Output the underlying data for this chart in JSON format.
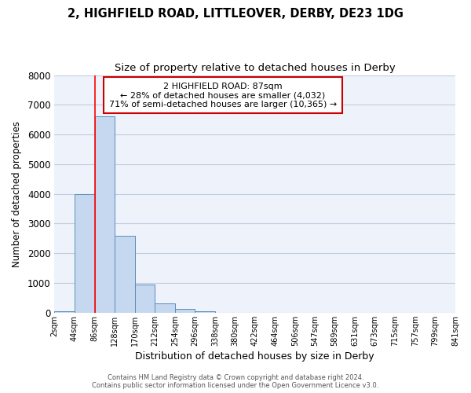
{
  "title": "2, HIGHFIELD ROAD, LITTLEOVER, DERBY, DE23 1DG",
  "subtitle": "Size of property relative to detached houses in Derby",
  "xlabel": "Distribution of detached houses by size in Derby",
  "ylabel": "Number of detached properties",
  "bin_edges": [
    2,
    44,
    86,
    128,
    170,
    212,
    254,
    296,
    338,
    380,
    422,
    464,
    506,
    547,
    589,
    631,
    673,
    715,
    757,
    799,
    841
  ],
  "bin_labels": [
    "2sqm",
    "44sqm",
    "86sqm",
    "128sqm",
    "170sqm",
    "212sqm",
    "254sqm",
    "296sqm",
    "338sqm",
    "380sqm",
    "422sqm",
    "464sqm",
    "506sqm",
    "547sqm",
    "589sqm",
    "631sqm",
    "673sqm",
    "715sqm",
    "757sqm",
    "799sqm",
    "841sqm"
  ],
  "bar_heights": [
    50,
    4000,
    6600,
    2600,
    950,
    320,
    130,
    50,
    0,
    0,
    0,
    0,
    0,
    0,
    0,
    0,
    0,
    0,
    0,
    0
  ],
  "bar_color": "#c5d8f0",
  "bar_edge_color": "#5b8db8",
  "background_color": "#ffffff",
  "plot_bg_color": "#eef2fa",
  "grid_color": "#c0cce0",
  "red_line_x": 87,
  "annotation_title": "2 HIGHFIELD ROAD: 87sqm",
  "annotation_line1": "← 28% of detached houses are smaller (4,032)",
  "annotation_line2": "71% of semi-detached houses are larger (10,365) →",
  "annotation_box_facecolor": "#ffffff",
  "annotation_box_edgecolor": "#cc0000",
  "ylim": [
    0,
    8000
  ],
  "yticks": [
    0,
    1000,
    2000,
    3000,
    4000,
    5000,
    6000,
    7000,
    8000
  ],
  "footer_line1": "Contains HM Land Registry data © Crown copyright and database right 2024.",
  "footer_line2": "Contains public sector information licensed under the Open Government Licence v3.0.",
  "title_fontsize": 10.5,
  "subtitle_fontsize": 9.5,
  "ylabel_fontsize": 8.5,
  "xlabel_fontsize": 9
}
